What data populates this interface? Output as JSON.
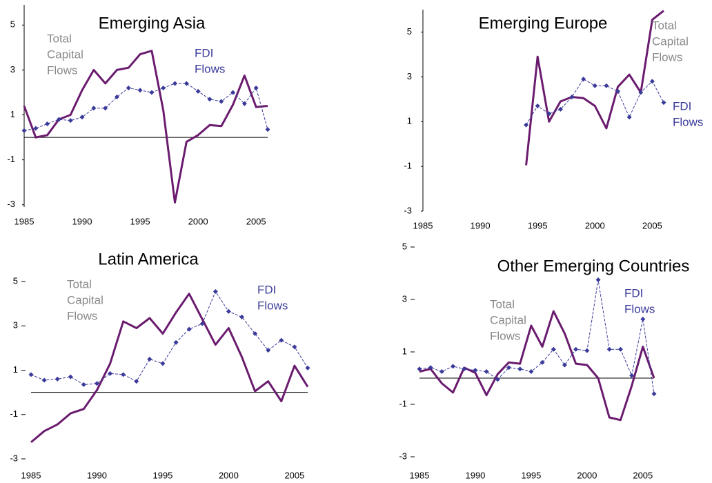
{
  "chart_data": [
    {
      "type": "line",
      "title": "Emerging Asia",
      "x": [
        1985,
        1986,
        1987,
        1988,
        1989,
        1990,
        1991,
        1992,
        1993,
        1994,
        1995,
        1996,
        1997,
        1998,
        1999,
        2000,
        2001,
        2002,
        2003,
        2004,
        2005,
        2006
      ],
      "xlim": [
        1985,
        2006
      ],
      "xticks": [
        1985,
        1990,
        1995,
        2000,
        2005
      ],
      "ylim": [
        -3.1,
        5.9
      ],
      "yticks": [
        5,
        3,
        1,
        -1,
        -3
      ],
      "zero_line": true,
      "series": [
        {
          "name": [
            "Total",
            "Capital",
            "Flows"
          ],
          "color": "#6a1b6e",
          "style": "solid",
          "values": [
            1.4,
            0.0,
            0.1,
            0.8,
            1.0,
            2.1,
            3.0,
            2.4,
            3.0,
            3.1,
            3.7,
            3.85,
            1.2,
            -2.9,
            -0.2,
            0.1,
            0.55,
            0.5,
            1.45,
            2.75,
            1.35,
            1.4
          ]
        },
        {
          "name": [
            "FDI",
            "Flows"
          ],
          "color": "#3a3a9a",
          "style": "dashed",
          "values": [
            0.3,
            0.4,
            0.6,
            0.8,
            0.75,
            0.9,
            1.3,
            1.3,
            1.8,
            2.2,
            2.1,
            2.0,
            2.2,
            2.4,
            2.4,
            2.05,
            1.7,
            1.6,
            2.0,
            1.5,
            2.2,
            0.35
          ]
        }
      ]
    },
    {
      "type": "line",
      "title": "Emerging Europe",
      "x": [
        1985,
        1986,
        1987,
        1988,
        1989,
        1990,
        1991,
        1992,
        1993,
        1994,
        1995,
        1996,
        1997,
        1998,
        1999,
        2000,
        2001,
        2002,
        2003,
        2004,
        2005,
        2006
      ],
      "xlim": [
        1985,
        2006
      ],
      "xticks": [
        1985,
        1990,
        1995,
        2000,
        2005
      ],
      "ylim": [
        -3,
        6
      ],
      "yticks": [
        5,
        3,
        1,
        -1,
        -3
      ],
      "zero_line": false,
      "series": [
        {
          "name": [
            "Total",
            "Capital",
            "Flows"
          ],
          "color": "#6a1b6e",
          "style": "solid",
          "values": [
            null,
            null,
            null,
            null,
            null,
            null,
            null,
            null,
            null,
            -0.95,
            3.9,
            1.0,
            1.9,
            2.1,
            2.05,
            1.7,
            0.7,
            2.55,
            3.1,
            2.3,
            5.55,
            5.95
          ]
        },
        {
          "name": [
            "FDI",
            "Flows"
          ],
          "color": "#3a3a9a",
          "style": "dashed",
          "values": [
            null,
            null,
            null,
            null,
            null,
            null,
            null,
            null,
            null,
            0.85,
            1.7,
            1.35,
            1.55,
            2.1,
            2.9,
            2.6,
            2.6,
            2.35,
            1.2,
            2.3,
            2.8,
            1.85
          ]
        }
      ]
    },
    {
      "type": "line",
      "title": "Latin America",
      "x": [
        1985,
        1986,
        1987,
        1988,
        1989,
        1990,
        1991,
        1992,
        1993,
        1994,
        1995,
        1996,
        1997,
        1998,
        1999,
        2000,
        2001,
        2002,
        2003,
        2004,
        2005,
        2006
      ],
      "xlim": [
        1985,
        2006
      ],
      "xticks": [
        1985,
        1990,
        1995,
        2000,
        2005
      ],
      "ylim": [
        -3,
        5
      ],
      "yticks": [
        5,
        3,
        1,
        -1,
        -3
      ],
      "zero_line": true,
      "series": [
        {
          "name": [
            "Total",
            "Capital",
            "Flows"
          ],
          "color": "#6a1b6e",
          "style": "solid",
          "values": [
            -2.25,
            -1.75,
            -1.45,
            -0.95,
            -0.75,
            0.1,
            1.3,
            3.2,
            2.9,
            3.35,
            2.65,
            3.6,
            4.45,
            3.3,
            2.15,
            2.9,
            1.6,
            0.05,
            0.5,
            -0.4,
            1.2,
            0.25
          ]
        },
        {
          "name": [
            "FDI",
            "Flows"
          ],
          "color": "#3a3a9a",
          "style": "dashed",
          "values": [
            0.8,
            0.55,
            0.6,
            0.7,
            0.35,
            0.4,
            0.85,
            0.8,
            0.5,
            1.5,
            1.3,
            2.25,
            2.85,
            3.1,
            4.55,
            3.65,
            3.4,
            2.65,
            1.9,
            2.35,
            2.05,
            1.1
          ]
        }
      ]
    },
    {
      "type": "line",
      "title": "Other Emerging Countries",
      "x": [
        1985,
        1986,
        1987,
        1988,
        1989,
        1990,
        1991,
        1992,
        1993,
        1994,
        1995,
        1996,
        1997,
        1998,
        1999,
        2000,
        2001,
        2002,
        2003,
        2004,
        2005,
        2006
      ],
      "xlim": [
        1985,
        2006
      ],
      "xticks": [
        1985,
        1990,
        1995,
        2000,
        2005
      ],
      "ylim": [
        -3,
        5
      ],
      "yticks": [
        5,
        3,
        1,
        -1,
        -3
      ],
      "zero_line": true,
      "series": [
        {
          "name": [
            "Total",
            "Capital",
            "Flows"
          ],
          "color": "#6a1b6e",
          "style": "solid",
          "values": [
            0.25,
            0.35,
            -0.2,
            -0.55,
            0.4,
            0.2,
            -0.65,
            0.15,
            0.6,
            0.55,
            2.0,
            1.2,
            2.55,
            1.7,
            0.55,
            0.5,
            0.0,
            -1.5,
            -1.6,
            -0.3,
            1.2,
            0.0
          ]
        },
        {
          "name": [
            "FDI",
            "Flows"
          ],
          "color": "#3a3a9a",
          "style": "dashed",
          "values": [
            0.35,
            0.4,
            0.25,
            0.45,
            0.35,
            0.3,
            0.25,
            -0.05,
            0.4,
            0.35,
            0.25,
            0.6,
            1.1,
            0.5,
            1.1,
            1.05,
            3.75,
            1.1,
            1.1,
            0.1,
            2.25,
            -0.6
          ]
        }
      ]
    }
  ]
}
